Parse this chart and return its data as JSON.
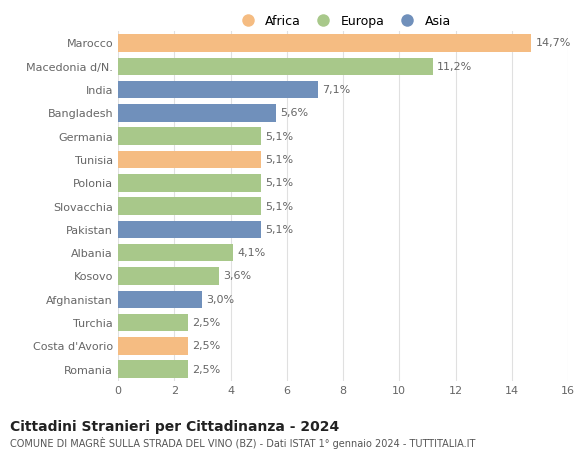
{
  "categories": [
    "Marocco",
    "Macedonia d/N.",
    "India",
    "Bangladesh",
    "Germania",
    "Tunisia",
    "Polonia",
    "Slovacchia",
    "Pakistan",
    "Albania",
    "Kosovo",
    "Afghanistan",
    "Turchia",
    "Costa d'Avorio",
    "Romania"
  ],
  "values": [
    14.7,
    11.2,
    7.1,
    5.6,
    5.1,
    5.1,
    5.1,
    5.1,
    5.1,
    4.1,
    3.6,
    3.0,
    2.5,
    2.5,
    2.5
  ],
  "labels": [
    "14,7%",
    "11,2%",
    "7,1%",
    "5,6%",
    "5,1%",
    "5,1%",
    "5,1%",
    "5,1%",
    "5,1%",
    "4,1%",
    "3,6%",
    "3,0%",
    "2,5%",
    "2,5%",
    "2,5%"
  ],
  "continents": [
    "Africa",
    "Europa",
    "Asia",
    "Asia",
    "Europa",
    "Africa",
    "Europa",
    "Europa",
    "Asia",
    "Europa",
    "Europa",
    "Asia",
    "Europa",
    "Africa",
    "Europa"
  ],
  "colors": {
    "Africa": "#F5BC82",
    "Europa": "#A8C88A",
    "Asia": "#7090BB"
  },
  "xlim": [
    0,
    16
  ],
  "xticks": [
    0,
    2,
    4,
    6,
    8,
    10,
    12,
    14,
    16
  ],
  "title": "Cittadini Stranieri per Cittadinanza - 2024",
  "subtitle": "COMUNE DI MAGRÈ SULLA STRADA DEL VINO (BZ) - Dati ISTAT 1° gennaio 2024 - TUTTITALIA.IT",
  "background_color": "#ffffff",
  "grid_color": "#e0e0e0",
  "bar_height": 0.75,
  "label_fontsize": 8,
  "tick_fontsize": 8,
  "title_fontsize": 10,
  "subtitle_fontsize": 7
}
